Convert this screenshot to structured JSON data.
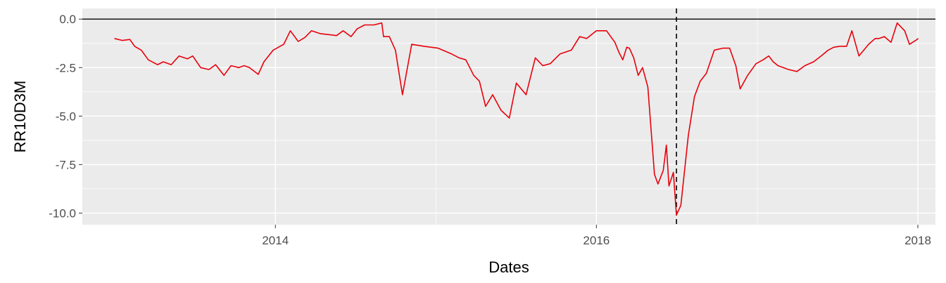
{
  "chart_data": {
    "type": "line",
    "title": "",
    "xlabel": "Dates",
    "ylabel": "RR10D3M",
    "xlim": [
      "2012-10-19",
      "2018-02-10"
    ],
    "ylim": [
      -10.6,
      0.55
    ],
    "x_ticks": [
      "2014",
      "2016",
      "2018"
    ],
    "y_ticks": [
      "0.0",
      "-2.5",
      "-5.0",
      "-7.5",
      "-10.0"
    ],
    "grid": true,
    "legend": "none",
    "background_color": "#ebebeb",
    "line_color": "#e8000b",
    "reference_lines": [
      {
        "type": "horizontal",
        "y": 0,
        "style": "solid",
        "color": "#000000"
      },
      {
        "type": "vertical",
        "x": "2016-07-01",
        "style": "dashed",
        "color": "#000000"
      }
    ],
    "series": [
      {
        "x": [
          "2012-12-31",
          "2013-01-18",
          "2013-02-04",
          "2013-02-15",
          "2013-03-02",
          "2013-03-18",
          "2013-04-08",
          "2013-04-21",
          "2013-05-09",
          "2013-05-27",
          "2013-06-15",
          "2013-06-27",
          "2013-07-15",
          "2013-08-03",
          "2013-08-18",
          "2013-09-06",
          "2013-09-22",
          "2013-10-10",
          "2013-10-22",
          "2013-11-03",
          "2013-11-23",
          "2013-12-06",
          "2013-12-27",
          "2014-01-20",
          "2014-02-04",
          "2014-02-22",
          "2014-03-09",
          "2014-03-24",
          "2014-04-13",
          "2014-05-03",
          "2014-05-20",
          "2014-06-04",
          "2014-06-22",
          "2014-07-06",
          "2014-07-23",
          "2014-08-13",
          "2014-08-31",
          "2014-09-04",
          "2014-09-17",
          "2014-10-01",
          "2014-10-17",
          "2014-11-07",
          "2014-12-05",
          "2015-01-06",
          "2015-02-06",
          "2015-02-23",
          "2015-03-10",
          "2015-03-28",
          "2015-04-10",
          "2015-04-24",
          "2015-05-10",
          "2015-05-29",
          "2015-06-17",
          "2015-07-03",
          "2015-07-25",
          "2015-08-15",
          "2015-09-01",
          "2015-09-18",
          "2015-10-10",
          "2015-11-05",
          "2015-11-24",
          "2015-12-10",
          "2016-01-01",
          "2016-01-24",
          "2016-02-12",
          "2016-02-21",
          "2016-03-01",
          "2016-03-10",
          "2016-03-16",
          "2016-03-26",
          "2016-04-05",
          "2016-04-15",
          "2016-04-27",
          "2016-05-12",
          "2016-05-20",
          "2016-06-01",
          "2016-06-08",
          "2016-06-14",
          "2016-06-24",
          "2016-07-01",
          "2016-07-11",
          "2016-07-28",
          "2016-08-11",
          "2016-08-24",
          "2016-09-07",
          "2016-09-25",
          "2016-10-15",
          "2016-10-30",
          "2016-11-13",
          "2016-11-23",
          "2016-12-10",
          "2016-12-29",
          "2017-01-14",
          "2017-01-27",
          "2017-02-06",
          "2017-02-17",
          "2017-03-13",
          "2017-04-01",
          "2017-04-19",
          "2017-05-09",
          "2017-05-26",
          "2017-06-11",
          "2017-06-24",
          "2017-07-08",
          "2017-07-23",
          "2017-08-04",
          "2017-08-20",
          "2017-09-11",
          "2017-09-26",
          "2017-10-05",
          "2017-10-17",
          "2017-11-01",
          "2017-11-15",
          "2017-12-02",
          "2017-12-13",
          "2017-12-27",
          "2018-01-02"
        ],
        "values": [
          -1.0,
          -1.1,
          -1.05,
          -1.4,
          -1.6,
          -2.1,
          -2.35,
          -2.2,
          -2.35,
          -1.9,
          -2.05,
          -1.9,
          -2.5,
          -2.6,
          -2.35,
          -2.9,
          -2.4,
          -2.5,
          -2.4,
          -2.5,
          -2.85,
          -2.2,
          -1.6,
          -1.3,
          -0.6,
          -1.15,
          -0.95,
          -0.6,
          -0.75,
          -0.8,
          -0.85,
          -0.6,
          -0.9,
          -0.5,
          -0.3,
          -0.3,
          -0.2,
          -0.9,
          -0.9,
          -1.6,
          -3.9,
          -1.3,
          -1.4,
          -1.5,
          -1.8,
          -2.0,
          -2.1,
          -2.9,
          -3.2,
          -4.5,
          -3.9,
          -4.7,
          -5.1,
          -3.3,
          -3.9,
          -2.0,
          -2.4,
          -2.3,
          -1.8,
          -1.6,
          -0.9,
          -1.0,
          -0.6,
          -0.6,
          -1.2,
          -1.7,
          -2.1,
          -1.45,
          -1.5,
          -2.0,
          -2.9,
          -2.5,
          -3.5,
          -8.0,
          -8.5,
          -7.8,
          -6.5,
          -8.6,
          -7.9,
          -10.1,
          -9.6,
          -6.0,
          -4.0,
          -3.2,
          -2.8,
          -1.6,
          -1.5,
          -1.5,
          -2.4,
          -3.6,
          -2.9,
          -2.3,
          -2.1,
          -1.9,
          -2.2,
          -2.4,
          -2.6,
          -2.7,
          -2.4,
          -2.2,
          -1.9,
          -1.6,
          -1.45,
          -1.4,
          -1.4,
          -0.6,
          -1.9,
          -1.3,
          -1.0,
          -1.0,
          -0.9,
          -1.2,
          -0.2,
          -0.6,
          -1.3,
          -1.1,
          -1.0
        ]
      }
    ]
  }
}
